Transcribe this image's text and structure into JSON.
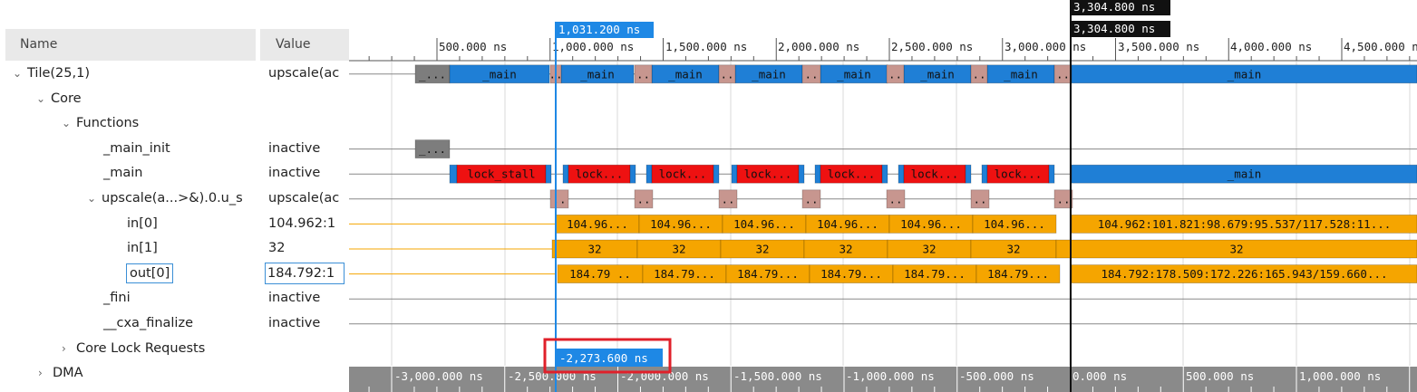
{
  "columns": {
    "name": "Name",
    "value": "Value"
  },
  "rows": [
    {
      "name": "Tile(25,1)",
      "value": "upscale(ac",
      "expander": "⌄"
    },
    {
      "name": "Core",
      "value": "",
      "expander": "⌄"
    },
    {
      "name": "Functions",
      "value": "",
      "expander": "⌄"
    },
    {
      "name": "_main_init",
      "value": "inactive",
      "expander": ""
    },
    {
      "name": "_main",
      "value": "inactive",
      "expander": ""
    },
    {
      "name": "upscale(a...>&).0.u_s",
      "value": "upscale(ac",
      "expander": "⌄"
    },
    {
      "name": "in[0]",
      "value": "104.962:1",
      "expander": ""
    },
    {
      "name": "in[1]",
      "value": "32",
      "expander": ""
    },
    {
      "name": "out[0]",
      "value": "184.792:1",
      "expander": ""
    },
    {
      "name": "_fini",
      "value": "inactive",
      "expander": ""
    },
    {
      "name": "__cxa_finalize",
      "value": "inactive",
      "expander": ""
    },
    {
      "name": "Core Lock Requests",
      "value": "",
      "expander": "›"
    },
    {
      "name": "DMA",
      "value": "",
      "expander": "›"
    }
  ],
  "top_ruler": {
    "labels": [
      "500.000 ns",
      "1,000.000 ns",
      "1,500.000 ns",
      "2,000.000 ns",
      "2,500.000 ns",
      "3,000.000 ns",
      "3,500.000 ns",
      "4,000.000 ns",
      "4,500.000 ns"
    ]
  },
  "bottom_ruler": {
    "labels": [
      "-3,000.000 ns",
      "-2,500.000 ns",
      "-2,000.000 ns",
      "-1,500.000 ns",
      "-1,000.000 ns",
      "-500.000 ns",
      "0.000 ns",
      "500.000 ns",
      "1,000.000 ns"
    ]
  },
  "cursors": {
    "blue": {
      "time_label": "1,031.200 ns",
      "delta_label": "-2,273.600 ns",
      "color": "#1e88e5"
    },
    "black": {
      "time_label": "3,304.800 ns",
      "time_label_2": "3,304.800 ns",
      "color": "#111111"
    }
  },
  "track_labels": {
    "main": "_main",
    "init": "_...",
    "sep": "..",
    "lock_stall": "lock_stall",
    "lock_short": "lock...",
    "in0_short": "104.96...",
    "in0_long": "104.962:101.821:98.679:95.537/117.528:11...",
    "in1": "32",
    "out0_short": "184.79...",
    "out0_first": "184.79 ..",
    "out0_long": "184.792:178.509:172.226:165.943/159.660..."
  },
  "colors": {
    "blue": "#1f7fd6",
    "gray": "#7d7d7d",
    "rose": "#c7968f",
    "red": "#ee1111",
    "orange": "#f5a500",
    "ruler_bg": "#8a8a8a",
    "delta_box": "#e0202a"
  }
}
